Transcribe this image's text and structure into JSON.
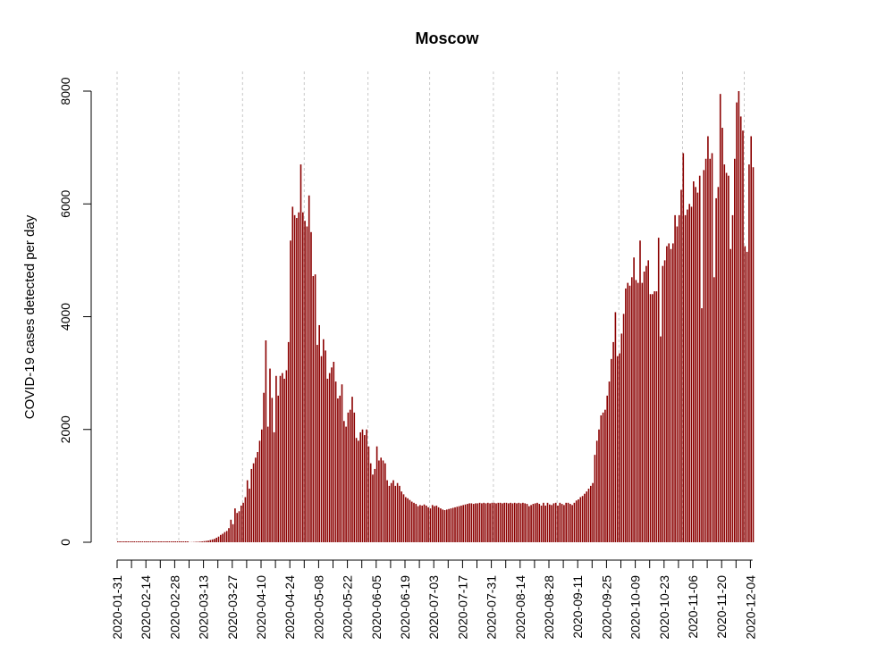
{
  "chart_data": {
    "type": "bar",
    "title": "Moscow",
    "xlabel": "",
    "ylabel": "COVID-19 cases detected per day",
    "x_start": "2020-01-31",
    "x_end": "2020-12-15",
    "ylim": [
      0,
      8000
    ],
    "yticks": [
      0,
      2000,
      4000,
      6000,
      8000
    ],
    "xtick_labels": [
      "2020-01-31",
      "2020-02-14",
      "2020-02-28",
      "2020-03-13",
      "2020-03-27",
      "2020-04-10",
      "2020-04-24",
      "2020-05-08",
      "2020-05-22",
      "2020-06-05",
      "2020-06-19",
      "2020-07-03",
      "2020-07-17",
      "2020-07-31",
      "2020-08-14",
      "2020-08-28",
      "2020-09-11",
      "2020-09-25",
      "2020-10-09",
      "2020-10-23",
      "2020-11-06",
      "2020-11-20",
      "2020-12-04"
    ],
    "vgrid_dates": [
      "2020-01-31",
      "2020-03-01",
      "2020-04-01",
      "2020-05-01",
      "2020-06-01",
      "2020-07-01",
      "2020-08-01",
      "2020-09-01",
      "2020-10-01",
      "2020-11-01",
      "2020-12-01"
    ],
    "grid": true,
    "bar_color": "#8b0000",
    "values": [
      0,
      0,
      0,
      0,
      0,
      0,
      0,
      0,
      0,
      0,
      0,
      0,
      0,
      0,
      0,
      0,
      0,
      0,
      0,
      0,
      0,
      0,
      0,
      0,
      0,
      0,
      0,
      0,
      0,
      0,
      0,
      0,
      0,
      0,
      0,
      2,
      3,
      5,
      8,
      10,
      12,
      15,
      20,
      25,
      30,
      40,
      50,
      60,
      80,
      100,
      130,
      150,
      180,
      200,
      250,
      400,
      320,
      600,
      520,
      550,
      650,
      700,
      800,
      1100,
      950,
      1300,
      1400,
      1500,
      1600,
      1800,
      2000,
      2650,
      3580,
      2050,
      3080,
      2560,
      1950,
      2950,
      2600,
      2950,
      3000,
      2900,
      3050,
      3550,
      5350,
      5950,
      5800,
      5750,
      5850,
      6700,
      5850,
      5700,
      5600,
      6150,
      5500,
      4720,
      4750,
      3500,
      3850,
      3300,
      3600,
      3400,
      2900,
      3000,
      3100,
      3200,
      2850,
      2550,
      2600,
      2800,
      2150,
      2050,
      2300,
      2350,
      2580,
      2300,
      1850,
      1800,
      1950,
      2000,
      1900,
      2000,
      1700,
      1400,
      1200,
      1300,
      1700,
      1450,
      1500,
      1450,
      1400,
      1100,
      1000,
      1050,
      1100,
      1000,
      1050,
      1000,
      900,
      850,
      800,
      780,
      750,
      720,
      700,
      680,
      640,
      660,
      650,
      670,
      650,
      620,
      600,
      660,
      640,
      650,
      620,
      600,
      580,
      570,
      580,
      590,
      600,
      610,
      620,
      630,
      640,
      650,
      660,
      670,
      680,
      690,
      690,
      680,
      690,
      690,
      700,
      690,
      700,
      690,
      700,
      690,
      700,
      700,
      690,
      700,
      700,
      690,
      700,
      700,
      690,
      700,
      690,
      700,
      690,
      700,
      690,
      700,
      690,
      680,
      640,
      660,
      680,
      690,
      700,
      680,
      650,
      700,
      650,
      700,
      670,
      660,
      690,
      700,
      650,
      700,
      680,
      660,
      700,
      700,
      680,
      660,
      700,
      740,
      760,
      800,
      820,
      860,
      900,
      950,
      1000,
      1050,
      1550,
      1800,
      2000,
      2250,
      2300,
      2350,
      2600,
      2850,
      3250,
      3550,
      4080,
      3300,
      3350,
      3700,
      4050,
      4500,
      4600,
      4550,
      4700,
      5050,
      4650,
      4600,
      5350,
      4600,
      4800,
      4900,
      5000,
      4400,
      4400,
      4450,
      4450,
      5400,
      3650,
      4900,
      5000,
      5250,
      5300,
      5200,
      5300,
      5800,
      5600,
      5800,
      6250,
      6900,
      5800,
      5900,
      6000,
      5950,
      6400,
      6300,
      6200,
      6500,
      4150,
      6600,
      6800,
      7200,
      6800,
      6900,
      4700,
      6100,
      6300,
      7950,
      7350,
      6700,
      6550,
      6500,
      5200,
      5800,
      6800,
      7800,
      8000,
      7550,
      7300,
      5250,
      5150,
      6700,
      7200,
      6650
    ]
  }
}
